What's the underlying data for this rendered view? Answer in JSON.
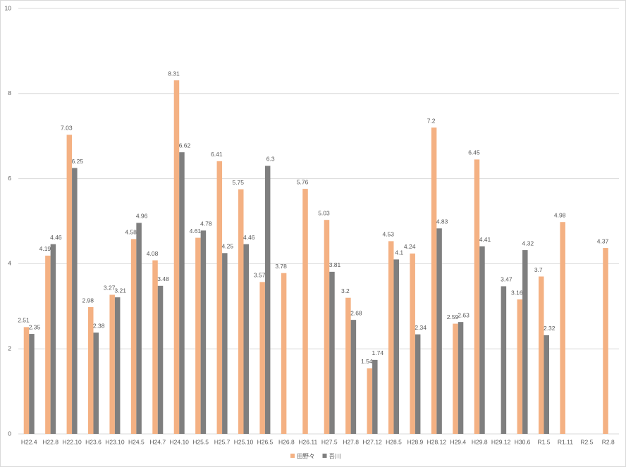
{
  "chart_data": {
    "type": "bar",
    "categories": [
      "H22.4",
      "H22.8",
      "H22.10",
      "H23.6",
      "H23.10",
      "H24.5",
      "H24.7",
      "H24.10",
      "H25.5",
      "H25.7",
      "H25.10",
      "H26.5",
      "H26.8",
      "H26.11",
      "H27.5",
      "H27.8",
      "H27.12",
      "H28.5",
      "H28.9",
      "H28.12",
      "H29.4",
      "H29.8",
      "H29.12",
      "H30.6",
      "R1.5",
      "R1.11",
      "R2.5",
      "R2.8"
    ],
    "series": [
      {
        "name": "田野々",
        "color": "#f4b183",
        "values": [
          2.51,
          4.19,
          7.03,
          2.98,
          3.27,
          4.58,
          4.08,
          8.31,
          4.61,
          6.41,
          5.75,
          3.57,
          3.78,
          5.76,
          5.03,
          3.2,
          1.54,
          4.53,
          4.24,
          7.2,
          2.59,
          6.45,
          null,
          3.16,
          3.7,
          4.98,
          null,
          4.37
        ]
      },
      {
        "name": "吾川",
        "color": "#7f7f7f",
        "values": [
          2.35,
          4.46,
          6.25,
          2.38,
          3.21,
          4.96,
          3.48,
          6.62,
          4.78,
          4.25,
          4.46,
          6.3,
          null,
          null,
          3.81,
          2.68,
          1.74,
          4.1,
          2.34,
          4.83,
          2.63,
          4.41,
          3.47,
          4.32,
          2.32,
          null,
          null,
          null
        ]
      }
    ],
    "ylim": [
      0,
      10
    ],
    "yticks": [
      0,
      2,
      4,
      6,
      8,
      10
    ],
    "grid": true,
    "legend": "bottom"
  }
}
